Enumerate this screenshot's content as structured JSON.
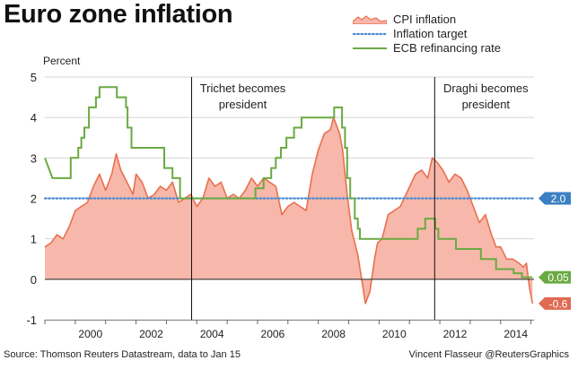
{
  "title": "Euro zone inflation",
  "source": "Source: Thomson Reuters Datastream, data to Jan 15",
  "credit": "Vincent Flasseur @ReutersGraphics",
  "legend": [
    {
      "name": "CPI inflation",
      "color": "#f4a898",
      "kind": "area"
    },
    {
      "name": "Inflation target",
      "color": "#4a8ad0",
      "kind": "dotted"
    },
    {
      "name": "ECB refinancing rate",
      "color": "#6aaa42",
      "kind": "line"
    }
  ],
  "chart_data": {
    "type": "line",
    "ylabel": "Percent",
    "xlabel": "",
    "ylim": [
      -1,
      5
    ],
    "xlim": [
      1999,
      2015.1
    ],
    "yticks": [
      -1,
      0,
      1,
      2,
      3,
      4,
      5
    ],
    "xticks": [
      2000,
      2002,
      2004,
      2006,
      2008,
      2010,
      2012,
      2014
    ],
    "grid": true,
    "legend_position": "top-right",
    "annotations": [
      {
        "x": 2003.83,
        "text_lines": [
          "Trichet becomes",
          "president"
        ]
      },
      {
        "x": 2011.83,
        "text_lines": [
          "Draghi becomes",
          "president"
        ]
      }
    ],
    "end_labels": [
      {
        "value": 2.0,
        "text": "2.0",
        "color": "#3b80c3"
      },
      {
        "value": 0.05,
        "text": "0.05",
        "color": "#6aaa42"
      },
      {
        "value": -0.6,
        "text": "-0.6",
        "color": "#e06a52"
      }
    ],
    "series": [
      {
        "name": "CPI inflation",
        "color": "#e8704f",
        "fill": "#f7b8ab",
        "points": [
          [
            1999.0,
            0.8
          ],
          [
            1999.2,
            0.9
          ],
          [
            1999.4,
            1.1
          ],
          [
            1999.6,
            1.0
          ],
          [
            1999.8,
            1.3
          ],
          [
            2000.0,
            1.7
          ],
          [
            2000.2,
            1.8
          ],
          [
            2000.4,
            1.9
          ],
          [
            2000.6,
            2.3
          ],
          [
            2000.8,
            2.6
          ],
          [
            2001.0,
            2.2
          ],
          [
            2001.2,
            2.6
          ],
          [
            2001.35,
            3.1
          ],
          [
            2001.5,
            2.7
          ],
          [
            2001.7,
            2.4
          ],
          [
            2001.9,
            2.1
          ],
          [
            2002.0,
            2.6
          ],
          [
            2002.2,
            2.4
          ],
          [
            2002.4,
            2.0
          ],
          [
            2002.6,
            2.1
          ],
          [
            2002.8,
            2.3
          ],
          [
            2003.0,
            2.2
          ],
          [
            2003.2,
            2.4
          ],
          [
            2003.4,
            1.9
          ],
          [
            2003.6,
            2.0
          ],
          [
            2003.8,
            2.1
          ],
          [
            2004.0,
            1.8
          ],
          [
            2004.2,
            2.0
          ],
          [
            2004.4,
            2.5
          ],
          [
            2004.6,
            2.3
          ],
          [
            2004.8,
            2.4
          ],
          [
            2005.0,
            2.0
          ],
          [
            2005.2,
            2.1
          ],
          [
            2005.4,
            2.0
          ],
          [
            2005.6,
            2.2
          ],
          [
            2005.8,
            2.5
          ],
          [
            2006.0,
            2.3
          ],
          [
            2006.2,
            2.5
          ],
          [
            2006.4,
            2.4
          ],
          [
            2006.6,
            2.3
          ],
          [
            2006.8,
            1.6
          ],
          [
            2007.0,
            1.8
          ],
          [
            2007.2,
            1.9
          ],
          [
            2007.4,
            1.8
          ],
          [
            2007.6,
            1.7
          ],
          [
            2007.8,
            2.6
          ],
          [
            2008.0,
            3.2
          ],
          [
            2008.2,
            3.6
          ],
          [
            2008.4,
            3.7
          ],
          [
            2008.5,
            4.0
          ],
          [
            2008.7,
            3.6
          ],
          [
            2008.8,
            3.2
          ],
          [
            2008.95,
            2.1
          ],
          [
            2009.1,
            1.2
          ],
          [
            2009.3,
            0.6
          ],
          [
            2009.45,
            -0.1
          ],
          [
            2009.55,
            -0.6
          ],
          [
            2009.7,
            -0.3
          ],
          [
            2009.85,
            0.5
          ],
          [
            2009.95,
            0.9
          ],
          [
            2010.1,
            1.0
          ],
          [
            2010.3,
            1.6
          ],
          [
            2010.5,
            1.7
          ],
          [
            2010.7,
            1.8
          ],
          [
            2010.95,
            2.2
          ],
          [
            2011.2,
            2.6
          ],
          [
            2011.4,
            2.7
          ],
          [
            2011.6,
            2.5
          ],
          [
            2011.75,
            3.0
          ],
          [
            2011.9,
            2.9
          ],
          [
            2012.1,
            2.7
          ],
          [
            2012.3,
            2.4
          ],
          [
            2012.5,
            2.6
          ],
          [
            2012.7,
            2.5
          ],
          [
            2012.9,
            2.2
          ],
          [
            2013.1,
            1.8
          ],
          [
            2013.3,
            1.4
          ],
          [
            2013.5,
            1.6
          ],
          [
            2013.7,
            1.1
          ],
          [
            2013.85,
            0.8
          ],
          [
            2014.0,
            0.8
          ],
          [
            2014.2,
            0.5
          ],
          [
            2014.4,
            0.5
          ],
          [
            2014.6,
            0.4
          ],
          [
            2014.75,
            0.3
          ],
          [
            2014.85,
            0.4
          ],
          [
            2014.95,
            -0.2
          ],
          [
            2015.05,
            -0.6
          ]
        ]
      },
      {
        "name": "Inflation target",
        "color": "#4a8ad0",
        "points": [
          [
            1999.0,
            2.0
          ],
          [
            2015.1,
            2.0
          ]
        ]
      },
      {
        "name": "ECB refinancing rate",
        "color": "#6aaa42",
        "points": [
          [
            1999.0,
            3.0
          ],
          [
            1999.25,
            2.5
          ],
          [
            1999.85,
            2.5
          ],
          [
            1999.85,
            3.0
          ],
          [
            2000.1,
            3.0
          ],
          [
            2000.1,
            3.25
          ],
          [
            2000.2,
            3.25
          ],
          [
            2000.2,
            3.5
          ],
          [
            2000.3,
            3.5
          ],
          [
            2000.3,
            3.75
          ],
          [
            2000.45,
            3.75
          ],
          [
            2000.45,
            4.25
          ],
          [
            2000.68,
            4.25
          ],
          [
            2000.68,
            4.5
          ],
          [
            2000.8,
            4.5
          ],
          [
            2000.8,
            4.75
          ],
          [
            2001.37,
            4.75
          ],
          [
            2001.37,
            4.5
          ],
          [
            2001.67,
            4.5
          ],
          [
            2001.67,
            4.25
          ],
          [
            2001.72,
            4.25
          ],
          [
            2001.72,
            3.75
          ],
          [
            2001.85,
            3.75
          ],
          [
            2001.85,
            3.25
          ],
          [
            2002.93,
            3.25
          ],
          [
            2002.93,
            2.75
          ],
          [
            2003.2,
            2.75
          ],
          [
            2003.2,
            2.5
          ],
          [
            2003.45,
            2.5
          ],
          [
            2003.45,
            2.0
          ],
          [
            2005.93,
            2.0
          ],
          [
            2005.93,
            2.25
          ],
          [
            2006.2,
            2.25
          ],
          [
            2006.2,
            2.5
          ],
          [
            2006.45,
            2.5
          ],
          [
            2006.45,
            2.75
          ],
          [
            2006.6,
            2.75
          ],
          [
            2006.6,
            3.0
          ],
          [
            2006.77,
            3.0
          ],
          [
            2006.77,
            3.25
          ],
          [
            2006.95,
            3.25
          ],
          [
            2006.95,
            3.5
          ],
          [
            2007.2,
            3.5
          ],
          [
            2007.2,
            3.75
          ],
          [
            2007.45,
            3.75
          ],
          [
            2007.45,
            4.0
          ],
          [
            2008.52,
            4.0
          ],
          [
            2008.52,
            4.25
          ],
          [
            2008.78,
            4.25
          ],
          [
            2008.78,
            3.75
          ],
          [
            2008.88,
            3.75
          ],
          [
            2008.88,
            3.25
          ],
          [
            2008.95,
            3.25
          ],
          [
            2008.95,
            2.5
          ],
          [
            2009.05,
            2.5
          ],
          [
            2009.05,
            2.0
          ],
          [
            2009.2,
            2.0
          ],
          [
            2009.2,
            1.5
          ],
          [
            2009.3,
            1.5
          ],
          [
            2009.3,
            1.25
          ],
          [
            2009.37,
            1.25
          ],
          [
            2009.37,
            1.0
          ],
          [
            2011.27,
            1.0
          ],
          [
            2011.27,
            1.25
          ],
          [
            2011.52,
            1.25
          ],
          [
            2011.52,
            1.5
          ],
          [
            2011.85,
            1.5
          ],
          [
            2011.85,
            1.25
          ],
          [
            2011.95,
            1.25
          ],
          [
            2011.95,
            1.0
          ],
          [
            2012.53,
            1.0
          ],
          [
            2012.53,
            0.75
          ],
          [
            2013.35,
            0.75
          ],
          [
            2013.35,
            0.5
          ],
          [
            2013.85,
            0.5
          ],
          [
            2013.85,
            0.25
          ],
          [
            2014.43,
            0.25
          ],
          [
            2014.43,
            0.15
          ],
          [
            2014.7,
            0.15
          ],
          [
            2014.7,
            0.05
          ],
          [
            2015.05,
            0.05
          ]
        ]
      }
    ]
  }
}
